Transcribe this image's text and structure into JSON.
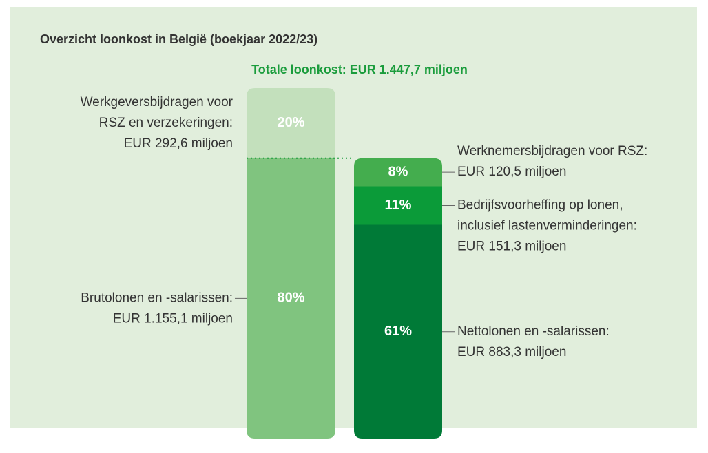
{
  "chart_data": {
    "type": "stacked_bar",
    "title": "Overzicht loonkost in België (boekjaar 2022/23)",
    "subtitle": "Totale loonkost: EUR 1.447,7 miljoen",
    "ylim": [
      0,
      100
    ],
    "bars": [
      {
        "values": [
          80,
          20
        ],
        "value_labels": [
          "80%",
          "20%"
        ],
        "colors": [
          "#80c47f",
          "#c3e0bc"
        ],
        "labels": [
          [
            "Brutolonen en -salarissen:",
            "EUR 1.155,1 miljoen"
          ],
          [
            "Werkgeversbijdragen voor",
            "RSZ en verzekeringen:",
            "EUR 292,6 miljoen"
          ]
        ]
      },
      {
        "values": [
          61,
          11,
          8
        ],
        "value_labels": [
          "61%",
          "11%",
          "8%"
        ],
        "colors": [
          "#007a37",
          "#0b9b39",
          "#44ad4e"
        ],
        "labels": [
          [
            "Nettolonen en -salarissen:",
            "EUR 883,3 miljoen"
          ],
          [
            "Bedrijfsvoorheffing op lonen,",
            "inclusief lastenverminderingen:",
            "EUR 151,3 miljoen"
          ],
          [
            "Werknemersbijdragen voor RSZ:",
            "EUR 120,5 miljoen"
          ]
        ]
      }
    ]
  }
}
